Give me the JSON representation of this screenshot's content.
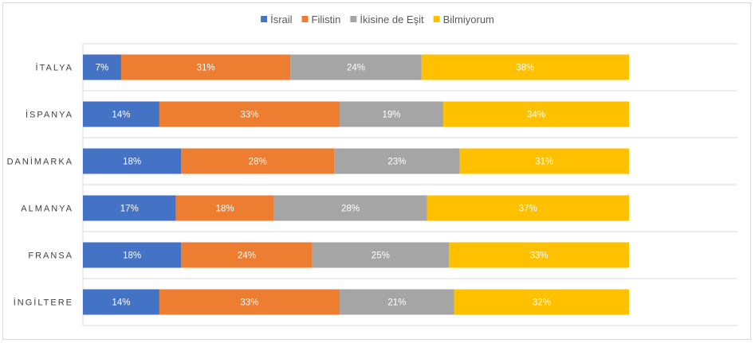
{
  "chart_data": {
    "type": "bar",
    "orientation": "horizontal",
    "stacked": true,
    "percent_stacked": true,
    "title": "",
    "xlabel": "",
    "ylabel": "",
    "categories": [
      "İTALYA",
      "İSPANYA",
      "DANİMARKA",
      "ALMANYA",
      "FRANSA",
      "İNGİLTERE"
    ],
    "series": [
      {
        "name": "İsrail",
        "color": "#4472c4",
        "values": [
          7,
          14,
          18,
          17,
          18,
          14
        ]
      },
      {
        "name": "Filistin",
        "color": "#ed7d31",
        "values": [
          31,
          33,
          28,
          18,
          24,
          33
        ]
      },
      {
        "name": "İkisine de Eşit",
        "color": "#a5a5a5",
        "values": [
          24,
          19,
          23,
          28,
          25,
          21
        ]
      },
      {
        "name": "Bilmiyorum",
        "color": "#ffc000",
        "values": [
          38,
          34,
          31,
          37,
          33,
          32
        ]
      }
    ],
    "value_suffix": "%",
    "legend_position": "top",
    "grid": true,
    "xlim": [
      0,
      100
    ]
  }
}
